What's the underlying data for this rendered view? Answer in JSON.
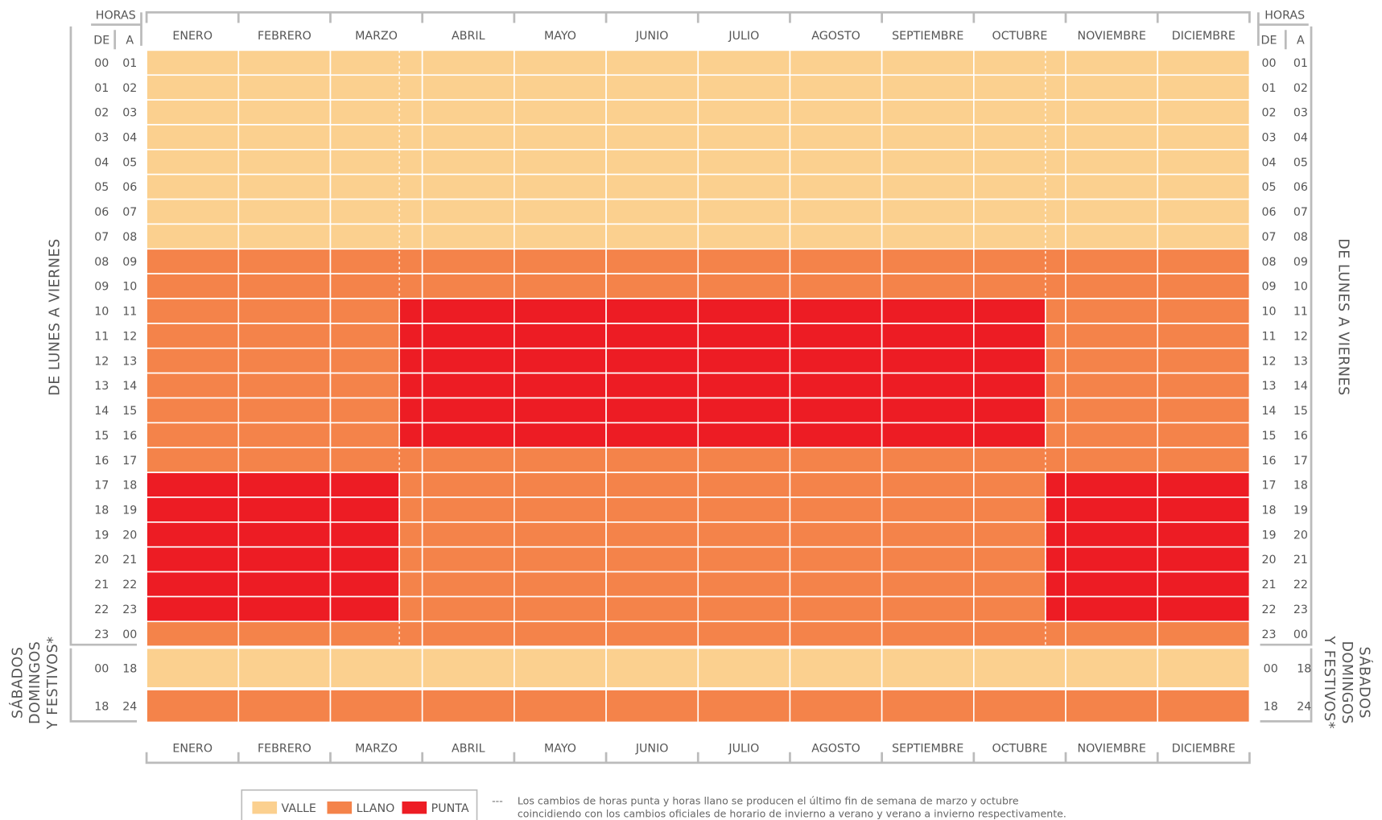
{
  "header": {
    "hours_label": "HORAS",
    "de_label": "DE",
    "a_label": "A"
  },
  "months": [
    "ENERO",
    "FEBRERO",
    "MARZO",
    "ABRIL",
    "MAYO",
    "JUNIO",
    "JULIO",
    "AGOSTO",
    "SEPTIEMBRE",
    "OCTUBRE",
    "NOVIEMBRE",
    "DICIEMBRE"
  ],
  "weekday": {
    "label": "DE LUNES A VIERNES",
    "rows": [
      {
        "de": "00",
        "a": "01",
        "winter": "VALLE",
        "summer": "VALLE"
      },
      {
        "de": "01",
        "a": "02",
        "winter": "VALLE",
        "summer": "VALLE"
      },
      {
        "de": "02",
        "a": "03",
        "winter": "VALLE",
        "summer": "VALLE"
      },
      {
        "de": "03",
        "a": "04",
        "winter": "VALLE",
        "summer": "VALLE"
      },
      {
        "de": "04",
        "a": "05",
        "winter": "VALLE",
        "summer": "VALLE"
      },
      {
        "de": "05",
        "a": "06",
        "winter": "VALLE",
        "summer": "VALLE"
      },
      {
        "de": "06",
        "a": "07",
        "winter": "VALLE",
        "summer": "VALLE"
      },
      {
        "de": "07",
        "a": "08",
        "winter": "VALLE",
        "summer": "VALLE"
      },
      {
        "de": "08",
        "a": "09",
        "winter": "LLANO",
        "summer": "LLANO"
      },
      {
        "de": "09",
        "a": "10",
        "winter": "LLANO",
        "summer": "LLANO"
      },
      {
        "de": "10",
        "a": "11",
        "winter": "LLANO",
        "summer": "PUNTA"
      },
      {
        "de": "11",
        "a": "12",
        "winter": "LLANO",
        "summer": "PUNTA"
      },
      {
        "de": "12",
        "a": "13",
        "winter": "LLANO",
        "summer": "PUNTA"
      },
      {
        "de": "13",
        "a": "14",
        "winter": "LLANO",
        "summer": "PUNTA"
      },
      {
        "de": "14",
        "a": "15",
        "winter": "LLANO",
        "summer": "PUNTA"
      },
      {
        "de": "15",
        "a": "16",
        "winter": "LLANO",
        "summer": "PUNTA"
      },
      {
        "de": "16",
        "a": "17",
        "winter": "LLANO",
        "summer": "LLANO"
      },
      {
        "de": "17",
        "a": "18",
        "winter": "PUNTA",
        "summer": "LLANO"
      },
      {
        "de": "18",
        "a": "19",
        "winter": "PUNTA",
        "summer": "LLANO"
      },
      {
        "de": "19",
        "a": "20",
        "winter": "PUNTA",
        "summer": "LLANO"
      },
      {
        "de": "20",
        "a": "21",
        "winter": "PUNTA",
        "summer": "LLANO"
      },
      {
        "de": "21",
        "a": "22",
        "winter": "PUNTA",
        "summer": "LLANO"
      },
      {
        "de": "22",
        "a": "23",
        "winter": "PUNTA",
        "summer": "LLANO"
      },
      {
        "de": "23",
        "a": "00",
        "winter": "LLANO",
        "summer": "LLANO"
      }
    ]
  },
  "weekend": {
    "label": [
      "SÁBADOS",
      "DOMINGOS",
      "Y FESTIVOS*"
    ],
    "rows": [
      {
        "de": "00",
        "a": "18",
        "tariff": "VALLE"
      },
      {
        "de": "18",
        "a": "24",
        "tariff": "LLANO"
      }
    ]
  },
  "legend": [
    {
      "label": "VALLE",
      "color": "#fbd08f"
    },
    {
      "label": "LLANO",
      "color": "#f4834a"
    },
    {
      "label": "PUNTA",
      "color": "#ed1c24"
    }
  ],
  "note": {
    "marker": "---",
    "lines": [
      "Los cambios de horas punta y horas llano se producen el último fin de semana de marzo y octubre",
      "coincidiendo con los cambios oficiales de horario de invierno a verano y verano a invierno respectivamente."
    ]
  }
}
